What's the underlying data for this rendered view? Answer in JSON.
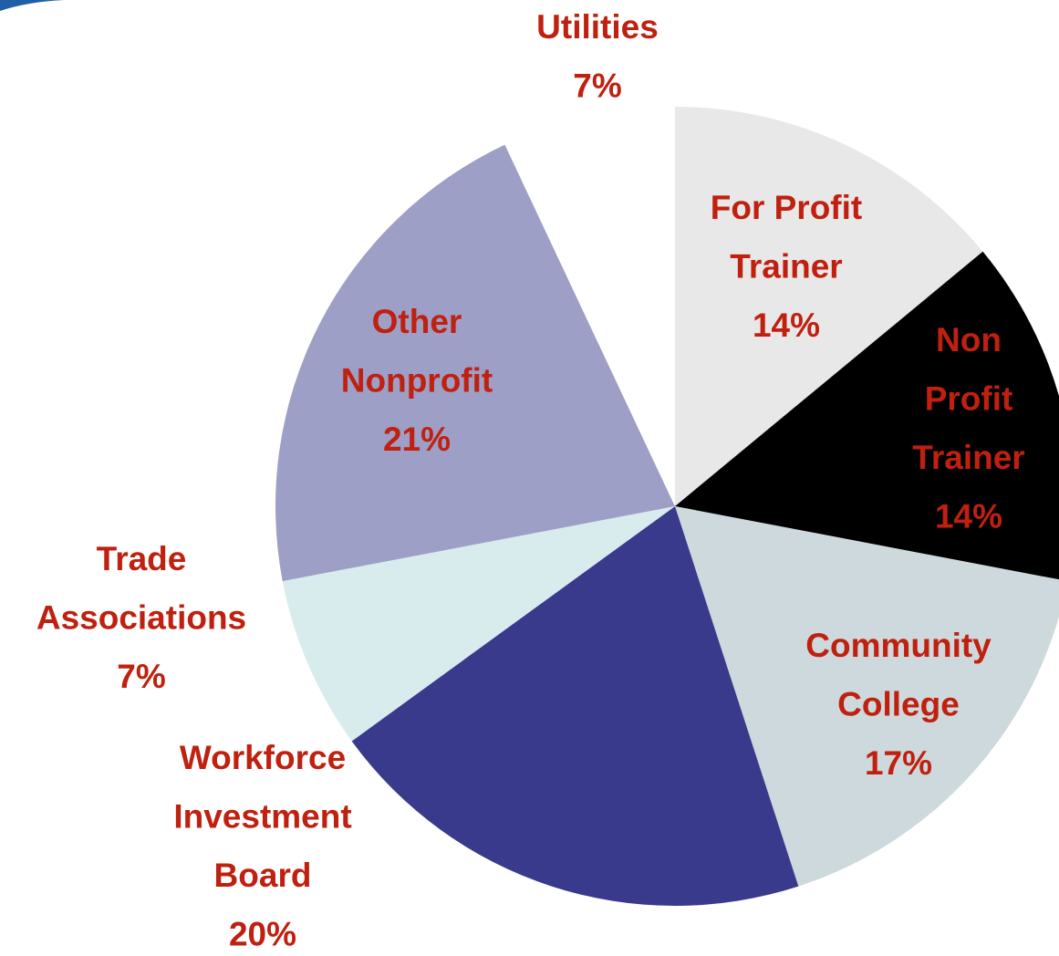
{
  "chart_data": {
    "type": "pie",
    "categories": [
      "For Profit Trainer",
      "Non Profit Trainer",
      "Community College",
      "Workforce Investment Board",
      "Trade Associations",
      "Other Nonprofit",
      "Utilities"
    ],
    "values": [
      14,
      14,
      17,
      20,
      7,
      21,
      7
    ],
    "value_labels": [
      "14%",
      "14%",
      "17%",
      "20%",
      "7%",
      "21%",
      "7%"
    ],
    "colors": [
      "#e8e8e8",
      "#000000",
      "#cdd9dc",
      "#3a3a8c",
      "#d8ecee",
      "#9d9fc6",
      "#ffffff"
    ]
  }
}
